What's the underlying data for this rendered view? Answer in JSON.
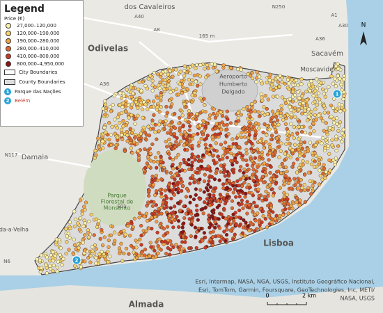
{
  "legend": {
    "title": "Legend",
    "subtitle": "Price (€)",
    "classes": [
      {
        "label": "27,000–120,000",
        "color": "#fcf3a8"
      },
      {
        "label": "120,000–190,000",
        "color": "#f8d36a"
      },
      {
        "label": "190,000–280,000",
        "color": "#f1a446"
      },
      {
        "label": "280,000–410,000",
        "color": "#e0692f"
      },
      {
        "label": "410,000–800,000",
        "color": "#c83a24"
      },
      {
        "label": "800,000–4,950,000",
        "color": "#8a1515"
      }
    ],
    "boundaries": [
      "City Boundaries",
      "County Boundaries"
    ],
    "places": [
      {
        "number": "1",
        "label": "Parque das Nações"
      },
      {
        "number": "2",
        "label": "Belém"
      }
    ]
  },
  "map_labels": [
    "dos Cavaleiros",
    "Odivelas",
    "Sacavém",
    "Moscavide",
    "Aeroporto",
    "Humberto",
    "Delgado",
    "Damaia",
    "Parque",
    "Florestal de",
    "Monsanto",
    "Lisboa",
    "Almada",
    "da-a-Velha",
    "A40",
    "A8",
    "A36",
    "A1",
    "A30",
    "N250",
    "N117",
    "IP7",
    "N6",
    "E01",
    "165 m",
    "A36"
  ],
  "attribution": [
    "Esri, Intermap, NASA, NGA, USGS, Instituto Geográfico Nacional,",
    "Esri, TomTom, Garmin, Foursquare, GeoTechnologies, Inc, METI/",
    "NASA, USGS"
  ],
  "scale": [
    "0",
    "2 km"
  ],
  "north": "N"
}
